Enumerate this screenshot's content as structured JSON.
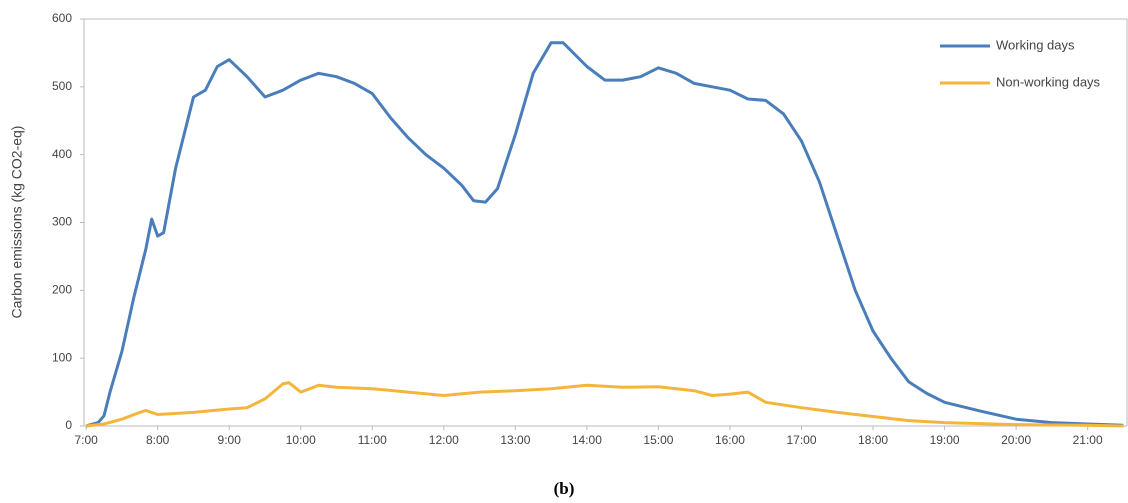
{
  "chart_data": {
    "type": "line",
    "ylabel": "Carbon emissions (kg CO2-eq)",
    "caption": "(b)",
    "xlim": [
      6.97,
      21.55
    ],
    "xticks": [
      {
        "value": 7,
        "label": "7:00"
      },
      {
        "value": 8,
        "label": "8:00"
      },
      {
        "value": 9,
        "label": "9:00"
      },
      {
        "value": 10,
        "label": "10:00"
      },
      {
        "value": 11,
        "label": "11:00"
      },
      {
        "value": 12,
        "label": "12:00"
      },
      {
        "value": 13,
        "label": "13:00"
      },
      {
        "value": 14,
        "label": "14:00"
      },
      {
        "value": 15,
        "label": "15:00"
      },
      {
        "value": 16,
        "label": "16:00"
      },
      {
        "value": 17,
        "label": "17:00"
      },
      {
        "value": 18,
        "label": "18:00"
      },
      {
        "value": 19,
        "label": "19:00"
      },
      {
        "value": 20,
        "label": "20:00"
      },
      {
        "value": 21,
        "label": "21:00"
      }
    ],
    "ylim": [
      0,
      600
    ],
    "yticks": [
      0,
      100,
      200,
      300,
      400,
      500,
      600
    ],
    "grid": false,
    "legend": "top-right",
    "series": [
      {
        "name": "Working days",
        "color": "#4a7ebb",
        "x": [
          7,
          7.167,
          7.25,
          7.333,
          7.5,
          7.667,
          7.833,
          7.917,
          8,
          8.083,
          8.25,
          8.5,
          8.667,
          8.833,
          9,
          9.25,
          9.5,
          9.75,
          10,
          10.25,
          10.5,
          10.75,
          11,
          11.25,
          11.5,
          11.75,
          12,
          12.25,
          12.417,
          12.583,
          12.75,
          13,
          13.25,
          13.5,
          13.667,
          14,
          14.25,
          14.5,
          14.75,
          15,
          15.25,
          15.5,
          15.75,
          16,
          16.25,
          16.5,
          16.75,
          17,
          17.25,
          17.5,
          17.75,
          18,
          18.25,
          18.5,
          18.75,
          19,
          19.5,
          20,
          20.5,
          21,
          21.5
        ],
        "values": [
          0,
          5,
          15,
          50,
          110,
          190,
          260,
          305,
          280,
          285,
          380,
          485,
          495,
          530,
          540,
          515,
          485,
          495,
          510,
          520,
          515,
          505,
          490,
          455,
          425,
          400,
          380,
          355,
          332,
          330,
          350,
          430,
          520,
          565,
          565,
          530,
          510,
          510,
          515,
          528,
          520,
          505,
          500,
          495,
          482,
          480,
          460,
          420,
          360,
          280,
          200,
          140,
          100,
          65,
          48,
          35,
          22,
          10,
          5,
          3,
          1
        ]
      },
      {
        "name": "Non-working days",
        "color": "#f4b63a",
        "x": [
          7,
          7.25,
          7.5,
          7.75,
          7.833,
          8,
          8.5,
          9,
          9.25,
          9.5,
          9.75,
          9.833,
          10,
          10.25,
          10.5,
          11,
          11.5,
          12,
          12.5,
          13,
          13.5,
          14,
          14.5,
          15,
          15.5,
          15.75,
          16,
          16.25,
          16.5,
          17,
          17.5,
          18,
          18.5,
          19,
          20,
          21,
          21.5
        ],
        "values": [
          0,
          3,
          10,
          20,
          23,
          17,
          20,
          25,
          27,
          40,
          62,
          64,
          50,
          60,
          57,
          55,
          50,
          45,
          50,
          52,
          55,
          60,
          57,
          58,
          52,
          45,
          47,
          50,
          35,
          27,
          20,
          14,
          8,
          5,
          2,
          1,
          0
        ]
      }
    ]
  }
}
